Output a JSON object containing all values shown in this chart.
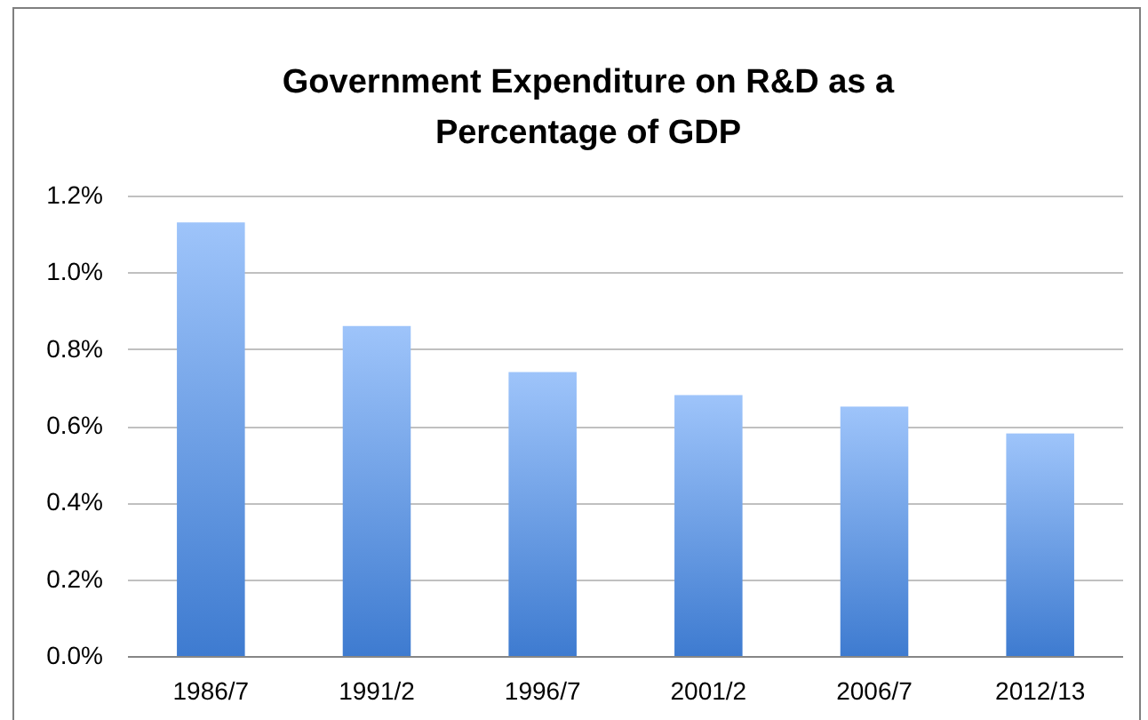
{
  "chart_data": {
    "type": "bar",
    "title": "Government Expenditure on R&D as a Percentage of GDP",
    "categories": [
      "1986/7",
      "1991/2",
      "1996/7",
      "2001/2",
      "2006/7",
      "2012/13"
    ],
    "values": [
      1.13,
      0.86,
      0.74,
      0.68,
      0.65,
      0.58
    ],
    "color": "#6b9ee6",
    "ylim": [
      0,
      1.2
    ],
    "yticks": [
      {
        "value": 0,
        "label": "0.0%"
      },
      {
        "value": 0.2,
        "label": "0.2%"
      },
      {
        "value": 0.4,
        "label": "0.4%"
      },
      {
        "value": 0.6,
        "label": "0.6%"
      },
      {
        "value": 0.8,
        "label": "0.8%"
      },
      {
        "value": 1.0,
        "label": "1.0%"
      },
      {
        "value": 1.2,
        "label": "1.2%"
      }
    ],
    "grid": "y"
  }
}
